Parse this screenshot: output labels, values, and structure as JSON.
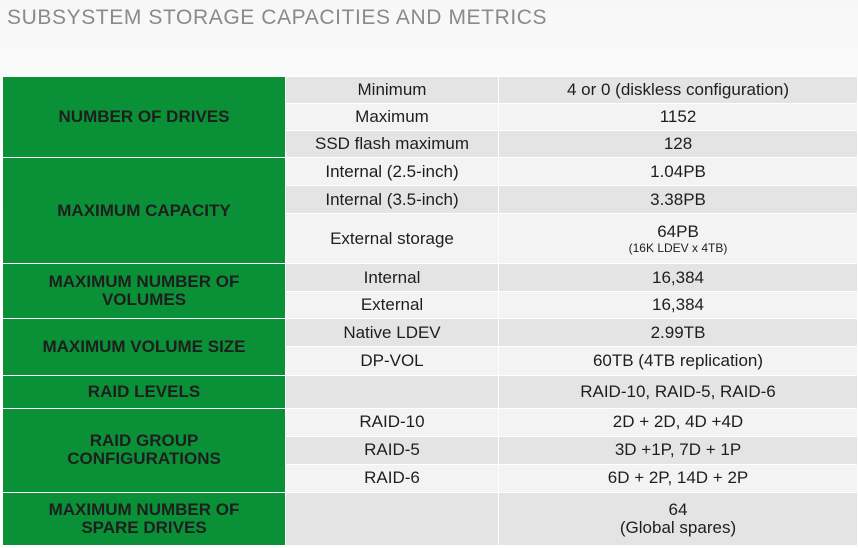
{
  "title": "SUBSYSTEM STORAGE CAPACITIES AND METRICS",
  "rows": [
    {
      "category": "NUMBER OF DRIVES",
      "sub": "Minimum",
      "value": "4 or 0 (diskless configuration)"
    },
    {
      "sub": "Maximum",
      "value": "1152"
    },
    {
      "sub": "SSD flash maximum",
      "value": "128"
    },
    {
      "category": "MAXIMUM CAPACITY",
      "sub": "Internal (2.5-inch)",
      "value": "1.04PB"
    },
    {
      "sub": "Internal (3.5-inch)",
      "value": "3.38PB"
    },
    {
      "sub": "External storage",
      "value": "64PB",
      "note": "(16K LDEV x 4TB)"
    },
    {
      "category_lines": [
        "MAXIMUM NUMBER OF",
        "VOLUMES"
      ],
      "sub": "Internal",
      "value": "16,384"
    },
    {
      "sub": "External",
      "value": "16,384"
    },
    {
      "category": "MAXIMUM VOLUME SIZE",
      "sub": "Native LDEV",
      "value": "2.99TB"
    },
    {
      "sub": "DP-VOL",
      "value": "60TB (4TB replication)"
    },
    {
      "category": "RAID LEVELS",
      "sub": "",
      "value": "RAID-10, RAID-5, RAID-6"
    },
    {
      "category_lines": [
        "RAID GROUP",
        "CONFIGURATIONS"
      ],
      "sub": "RAID-10",
      "value": "2D + 2D, 4D +4D"
    },
    {
      "sub": "RAID-5",
      "value": "3D +1P, 7D + 1P"
    },
    {
      "sub": "RAID-6",
      "value": "6D + 2P, 14D + 2P"
    },
    {
      "category_lines": [
        "MAXIMUM NUMBER OF",
        "SPARE DRIVES"
      ],
      "sub": "",
      "value_lines": [
        "64",
        "(Global spares)"
      ]
    }
  ]
}
